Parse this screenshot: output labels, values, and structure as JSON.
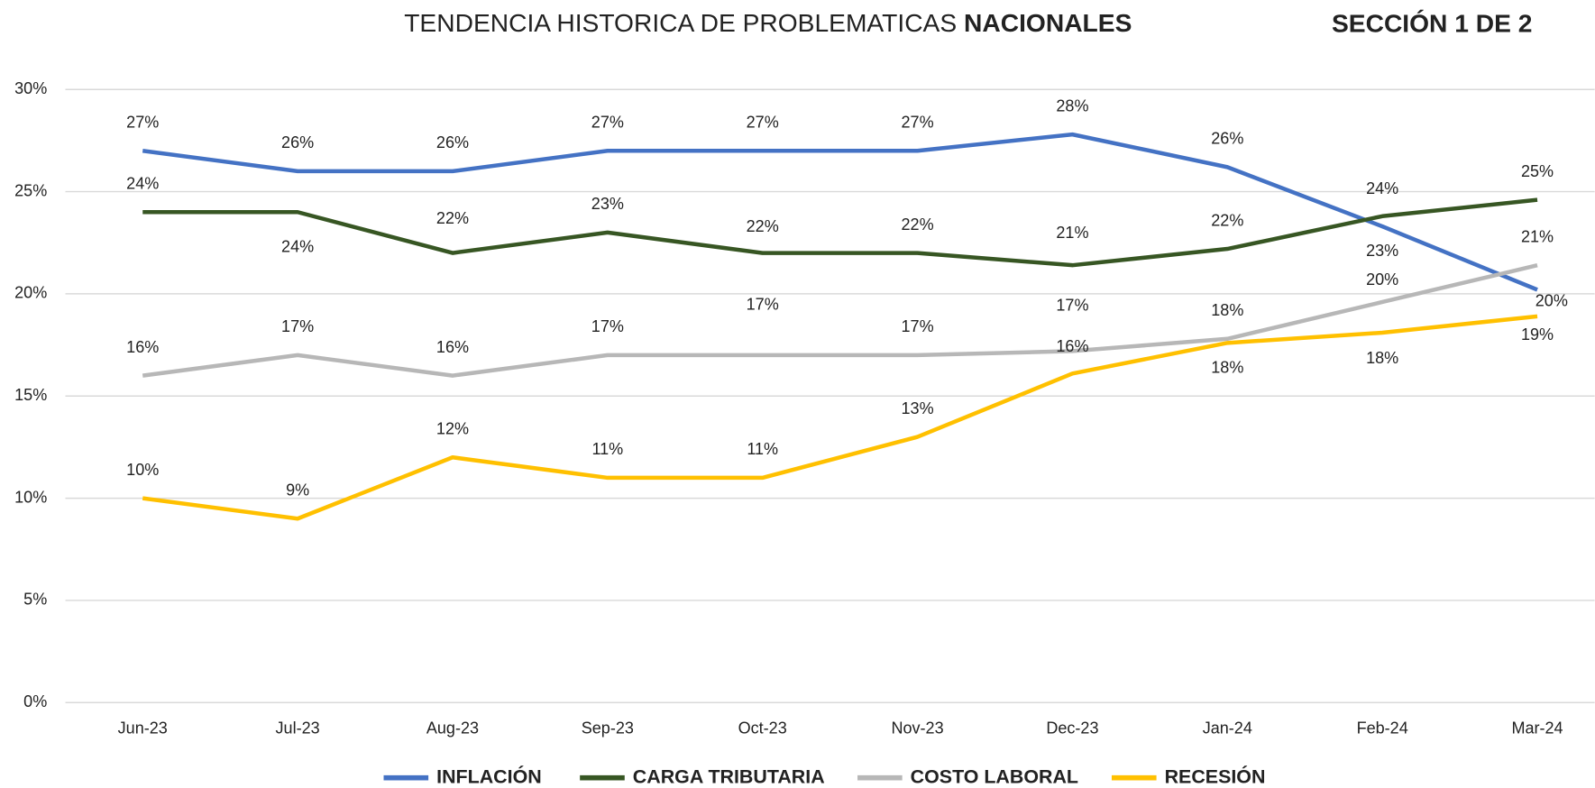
{
  "chart_data": {
    "type": "line",
    "title": [
      "TENDENCIA HISTORICA DE PROBLEMATICAS",
      "NACIONALES"
    ],
    "section": "SECCIÓN 1 DE 2",
    "categories": [
      "Jun-23",
      "Jul-23",
      "Aug-23",
      "Sep-23",
      "Oct-23",
      "Nov-23",
      "Dec-23",
      "Jan-24",
      "Feb-24",
      "Mar-24"
    ],
    "ylim": [
      0,
      30
    ],
    "yticks": [
      {
        "value": 0,
        "label": "0%"
      },
      {
        "value": 5,
        "label": "5%"
      },
      {
        "value": 10,
        "label": "10%"
      },
      {
        "value": 15,
        "label": "15%"
      },
      {
        "value": 20,
        "label": "20%"
      },
      {
        "value": 25,
        "label": "25%"
      },
      {
        "value": 30,
        "label": "30%"
      }
    ],
    "grid": true,
    "legend": "bottom",
    "series": [
      {
        "name": "INFLACIÓN",
        "color": "#4472c4",
        "values": [
          27,
          26,
          26,
          27,
          27,
          27,
          27.8,
          26.2,
          23.3,
          20.2
        ],
        "value_labels": [
          "27%",
          "26%",
          "26%",
          "27%",
          "27%",
          "27%",
          "28%",
          "26%",
          "23%",
          "20%"
        ]
      },
      {
        "name": "CARGA TRIBUTARIA",
        "color": "#375623",
        "values": [
          24,
          24,
          22,
          23,
          22,
          22,
          21.4,
          22.2,
          23.8,
          24.6
        ],
        "value_labels": [
          "24%",
          "24%",
          "22%",
          "23%",
          "22%",
          "22%",
          "21%",
          "22%",
          "24%",
          "25%"
        ]
      },
      {
        "name": "COSTO LABORAL",
        "color": "#b7b7b7",
        "values": [
          16,
          17,
          16,
          17,
          17,
          17,
          17.2,
          17.8,
          19.6,
          21.4
        ],
        "value_labels": [
          "16%",
          "17%",
          "16%",
          "17%",
          "17%",
          "17%",
          "17%",
          "18%",
          "20%",
          "21%"
        ]
      },
      {
        "name": "RECESIÓN",
        "color": "#ffc000",
        "values": [
          10,
          9,
          12,
          11,
          11,
          13,
          16.1,
          17.6,
          18.1,
          18.9
        ],
        "value_labels": [
          "10%",
          "9%",
          "12%",
          "11%",
          "11%",
          "13%",
          "16%",
          "18%",
          "18%",
          "19%"
        ]
      }
    ]
  }
}
